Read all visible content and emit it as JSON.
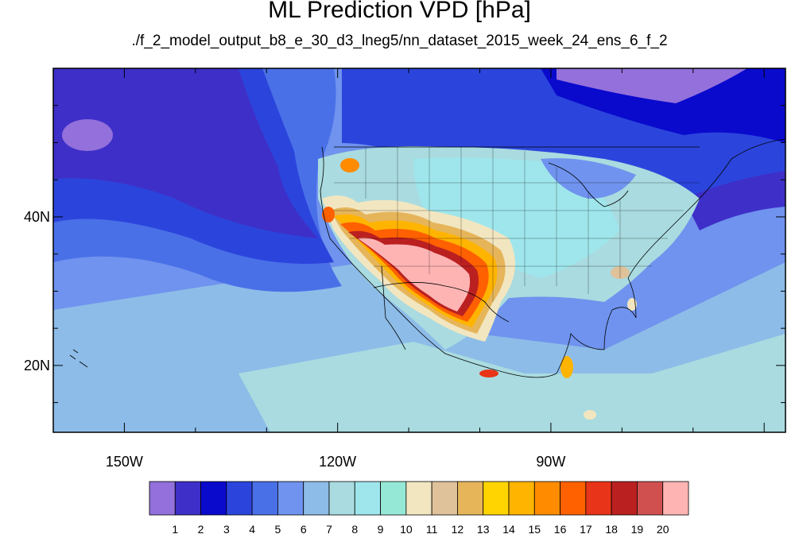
{
  "title": "ML Prediction VPD [hPa]",
  "subtitle": "./f_2_model_output_b8_e_30_d3_lneg5/nn_dataset_2015_week_24_ens_6_f_2",
  "lat_labels": [
    {
      "text": "40N",
      "lat": 40
    },
    {
      "text": "20N",
      "lat": 20
    }
  ],
  "lon_labels": [
    {
      "text": "150W",
      "lon": -150
    },
    {
      "text": "120W",
      "lon": -120
    },
    {
      "text": "90W",
      "lon": -90
    }
  ],
  "extent": {
    "lon_min": -160,
    "lon_max": -57,
    "lat_min": 11,
    "lat_max": 60
  },
  "colorbar": {
    "labels": [
      "1",
      "2",
      "3",
      "4",
      "5",
      "6",
      "7",
      "8",
      "9",
      "10",
      "11",
      "12",
      "13",
      "14",
      "15",
      "16",
      "17",
      "18",
      "19",
      "20"
    ],
    "colors": [
      "#9370db",
      "#3e2fc8",
      "#0a0acd",
      "#2b45dc",
      "#4a70e8",
      "#6f93ee",
      "#8dbce8",
      "#a9dbe0",
      "#9fe6ec",
      "#95e8d6",
      "#f2e6c0",
      "#dfc19a",
      "#e6b55a",
      "#ffd400",
      "#ffb400",
      "#ff8c00",
      "#ff6000",
      "#e83418",
      "#bb2020",
      "#d05050",
      "#ffb4b4"
    ]
  }
}
